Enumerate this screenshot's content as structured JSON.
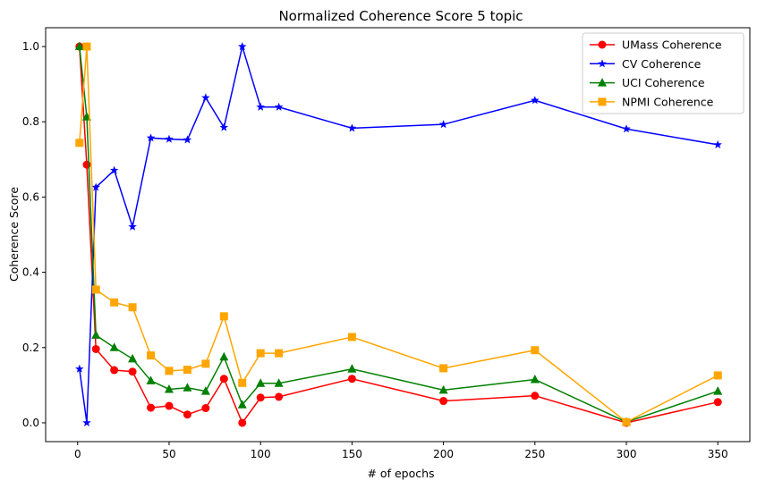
{
  "chart_data": {
    "type": "line",
    "title": "Normalized Coherence Score 5 topic",
    "xlabel": "# of epochs",
    "ylabel": "Coherence Score",
    "xlim": [
      -17.5,
      367.5
    ],
    "ylim": [
      -0.05,
      1.05
    ],
    "xticks": [
      0,
      50,
      100,
      150,
      200,
      250,
      300,
      350
    ],
    "xtick_labels": [
      "0",
      "50",
      "100",
      "150",
      "200",
      "250",
      "300",
      "350"
    ],
    "yticks": [
      0.0,
      0.2,
      0.4,
      0.6,
      0.8,
      1.0
    ],
    "ytick_labels": [
      "0.0",
      "0.2",
      "0.4",
      "0.6",
      "0.8",
      "1.0"
    ],
    "grid": false,
    "legend_position": "top-right",
    "x": [
      1,
      5,
      10,
      20,
      30,
      40,
      50,
      60,
      70,
      80,
      90,
      100,
      110,
      150,
      200,
      250,
      300,
      350
    ],
    "series": [
      {
        "name": "UMass Coherence",
        "color": "#ff0000",
        "marker": "circle",
        "values": [
          1.0,
          0.686,
          0.196,
          0.14,
          0.136,
          0.04,
          0.045,
          0.022,
          0.039,
          0.117,
          0.0,
          0.067,
          0.069,
          0.117,
          0.058,
          0.072,
          0.0,
          0.055
        ]
      },
      {
        "name": "CV Coherence",
        "color": "#0000ff",
        "marker": "star",
        "values": [
          0.143,
          0.0,
          0.626,
          0.671,
          0.521,
          0.757,
          0.754,
          0.752,
          0.864,
          0.785,
          1.0,
          0.839,
          0.839,
          0.783,
          0.793,
          0.857,
          0.781,
          0.739
        ]
      },
      {
        "name": "UCI Coherence",
        "color": "#008000",
        "marker": "triangle",
        "values": [
          1.0,
          0.813,
          0.233,
          0.2,
          0.17,
          0.112,
          0.089,
          0.093,
          0.084,
          0.175,
          0.048,
          0.105,
          0.105,
          0.143,
          0.087,
          0.115,
          0.002,
          0.084
        ]
      },
      {
        "name": "NPMI Coherence",
        "color": "#ffa500",
        "marker": "square",
        "values": [
          0.744,
          1.0,
          0.354,
          0.32,
          0.307,
          0.179,
          0.138,
          0.141,
          0.157,
          0.283,
          0.106,
          0.185,
          0.185,
          0.228,
          0.145,
          0.193,
          0.002,
          0.126
        ]
      }
    ]
  }
}
